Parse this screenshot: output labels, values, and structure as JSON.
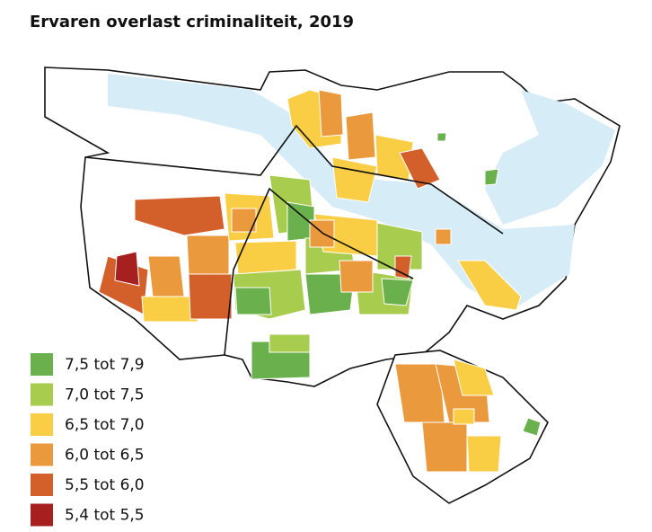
{
  "title": "Ervaren overlast criminaliteit, 2019",
  "legend": [
    {
      "label": "7,5 tot 7,9",
      "color": "#6ab04c"
    },
    {
      "label": "7,0 tot 7,5",
      "color": "#a8cc4e"
    },
    {
      "label": "6,5 tot 7,0",
      "color": "#f9cd44"
    },
    {
      "label": "6,0 tot 6,5",
      "color": "#ea9a3c"
    },
    {
      "label": "5,5 tot 6,0",
      "color": "#d35f2b"
    },
    {
      "label": "5,4 tot 5,5",
      "color": "#a5201e"
    }
  ]
}
